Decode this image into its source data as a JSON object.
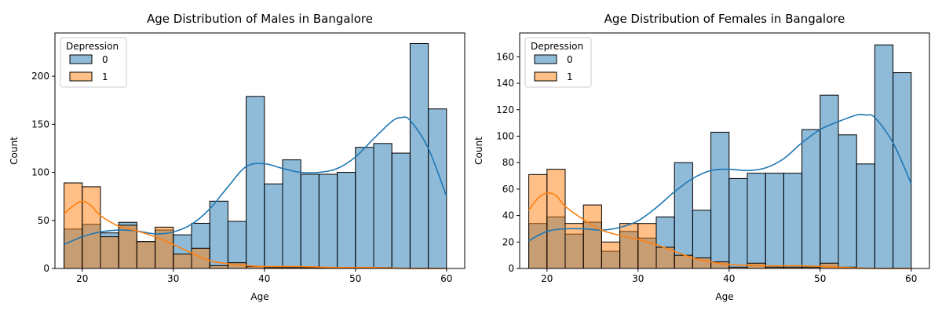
{
  "figure": {
    "colors": {
      "class0": "#1f77b4",
      "class1": "#ff7f0e",
      "bar_alpha": 0.5,
      "edge": "#000000"
    }
  },
  "chart_data": [
    {
      "type": "histogram",
      "title": "Age Distribution of Males in Bangalore",
      "xlabel": "Age",
      "ylabel": "Count",
      "xlim": [
        17,
        62
      ],
      "ylim": [
        0,
        245
      ],
      "xticks": [
        20,
        30,
        40,
        50,
        60
      ],
      "yticks": [
        0,
        50,
        100,
        150,
        200
      ],
      "grid": false,
      "legend": {
        "title": "Depression",
        "entries": [
          "0",
          "1"
        ],
        "placement": "upper-left"
      },
      "bin_edges": [
        18,
        20,
        22,
        24,
        26,
        28,
        30,
        32,
        34,
        36,
        38,
        40,
        42,
        44,
        46,
        48,
        50,
        52,
        54,
        56,
        58,
        60
      ],
      "series": [
        {
          "name": "0",
          "counts": [
            41,
            46,
            37,
            48,
            28,
            40,
            35,
            47,
            70,
            49,
            179,
            88,
            113,
            98,
            98,
            100,
            126,
            130,
            120,
            234,
            166
          ],
          "kde": [
            [
              18,
              25
            ],
            [
              20,
              33
            ],
            [
              22,
              38
            ],
            [
              24,
              40
            ],
            [
              26,
              39
            ],
            [
              28,
              36
            ],
            [
              30,
              38
            ],
            [
              32,
              46
            ],
            [
              34,
              62
            ],
            [
              36,
              85
            ],
            [
              38,
              106
            ],
            [
              40,
              109
            ],
            [
              42,
              104
            ],
            [
              44,
              100
            ],
            [
              46,
              100
            ],
            [
              48,
              104
            ],
            [
              50,
              116
            ],
            [
              52,
              135
            ],
            [
              54,
              153
            ],
            [
              55,
              157
            ],
            [
              56,
              154
            ],
            [
              58,
              125
            ],
            [
              60,
              75
            ]
          ]
        },
        {
          "name": "1",
          "counts": [
            89,
            85,
            33,
            45,
            28,
            43,
            15,
            21,
            3,
            6,
            2,
            1,
            1,
            1,
            1,
            1,
            1,
            1,
            0,
            0,
            0
          ],
          "kde": [
            [
              18,
              57
            ],
            [
              19,
              65
            ],
            [
              20,
              70
            ],
            [
              21,
              65
            ],
            [
              22,
              55
            ],
            [
              24,
              44
            ],
            [
              26,
              39
            ],
            [
              28,
              33
            ],
            [
              30,
              25
            ],
            [
              32,
              16
            ],
            [
              34,
              8
            ],
            [
              36,
              5
            ],
            [
              38,
              3
            ],
            [
              40,
              2
            ],
            [
              44,
              2
            ],
            [
              48,
              1
            ],
            [
              52,
              1
            ],
            [
              56,
              0
            ],
            [
              60,
              0
            ]
          ]
        }
      ]
    },
    {
      "type": "histogram",
      "title": "Age Distribution of Females in Bangalore",
      "xlabel": "Age",
      "ylabel": "Count",
      "xlim": [
        17,
        62
      ],
      "ylim": [
        0,
        178
      ],
      "xticks": [
        20,
        30,
        40,
        50,
        60
      ],
      "yticks": [
        0,
        20,
        40,
        60,
        80,
        100,
        120,
        140,
        160
      ],
      "grid": false,
      "legend": {
        "title": "Depression",
        "entries": [
          "0",
          "1"
        ],
        "placement": "upper-left"
      },
      "bin_edges": [
        18,
        20,
        22,
        24,
        26,
        28,
        30,
        32,
        34,
        36,
        38,
        40,
        42,
        44,
        46,
        48,
        50,
        52,
        54,
        56,
        58,
        60
      ],
      "series": [
        {
          "name": "0",
          "counts": [
            34,
            39,
            26,
            35,
            13,
            28,
            23,
            39,
            80,
            44,
            103,
            68,
            72,
            72,
            72,
            105,
            131,
            101,
            79,
            169,
            148
          ],
          "kde": [
            [
              18,
              21
            ],
            [
              20,
              28
            ],
            [
              22,
              30
            ],
            [
              24,
              30
            ],
            [
              26,
              29
            ],
            [
              28,
              31
            ],
            [
              30,
              36
            ],
            [
              32,
              46
            ],
            [
              34,
              58
            ],
            [
              36,
              68
            ],
            [
              38,
              74
            ],
            [
              40,
              75
            ],
            [
              42,
              74
            ],
            [
              44,
              76
            ],
            [
              46,
              83
            ],
            [
              48,
              95
            ],
            [
              50,
              105
            ],
            [
              52,
              111
            ],
            [
              54,
              116
            ],
            [
              55,
              116
            ],
            [
              56,
              114
            ],
            [
              58,
              95
            ],
            [
              60,
              64
            ]
          ]
        },
        {
          "name": "1",
          "counts": [
            71,
            75,
            34,
            48,
            20,
            34,
            34,
            16,
            10,
            8,
            5,
            1,
            4,
            1,
            1,
            1,
            4,
            1,
            0,
            0,
            0
          ],
          "kde": [
            [
              18,
              44
            ],
            [
              19,
              53
            ],
            [
              20,
              57
            ],
            [
              21,
              55
            ],
            [
              22,
              47
            ],
            [
              24,
              37
            ],
            [
              26,
              29
            ],
            [
              28,
              25
            ],
            [
              30,
              22
            ],
            [
              32,
              18
            ],
            [
              34,
              13
            ],
            [
              36,
              8
            ],
            [
              38,
              5
            ],
            [
              40,
              3
            ],
            [
              44,
              2
            ],
            [
              48,
              2
            ],
            [
              52,
              1
            ],
            [
              56,
              0
            ],
            [
              60,
              0
            ]
          ]
        }
      ]
    }
  ]
}
